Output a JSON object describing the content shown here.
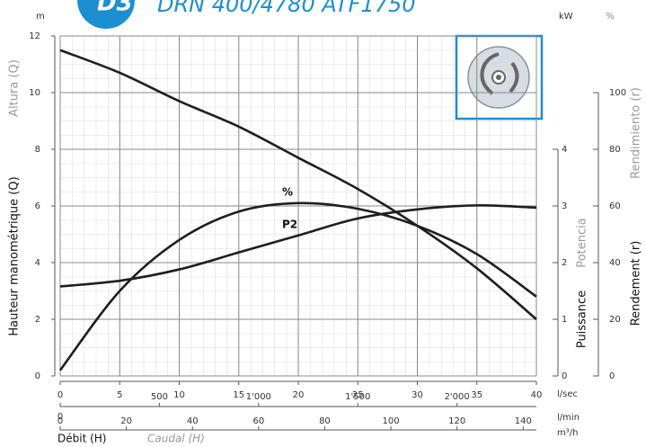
{
  "badge": "D3",
  "chart_data": {
    "type": "line",
    "title": "DRN 400/4780 ATF1750",
    "x": [
      0,
      5,
      10,
      15,
      20,
      25,
      30,
      35,
      40
    ],
    "xlim": [
      0,
      40
    ],
    "xticks": [
      0,
      5,
      10,
      15,
      20,
      25,
      30,
      35,
      40
    ],
    "xunit": "l/sec",
    "x2lim": [
      0,
      2400
    ],
    "x2ticks": [
      0,
      500,
      {
        "value": 1000,
        "label": "1'000"
      },
      {
        "value": 1500,
        "label": "1'500"
      },
      {
        "value": 2000,
        "label": "2'000"
      }
    ],
    "x2unit": "l/min",
    "x3lim": [
      0,
      144
    ],
    "x3ticks": [
      0,
      20,
      40,
      60,
      80,
      100,
      120,
      140
    ],
    "x3unit": "m³/h",
    "xlabel": "Débit (H)",
    "xlabel_alt": "Caudal (H)",
    "ylim": [
      0,
      12
    ],
    "yticks": [
      0,
      2,
      4,
      6,
      8,
      10,
      12
    ],
    "yunit": "m",
    "ylabel": "Hauteur manométrique (Q)",
    "ylabel_alt": "Altura (Q)",
    "y2lim": [
      0,
      6
    ],
    "y2ticks": [
      0,
      1,
      2,
      3,
      4
    ],
    "y2unit": "kW",
    "y2label": "Puissance",
    "y2label_alt": "Potencia",
    "y3lim": [
      0,
      120
    ],
    "y3ticks": [
      0,
      20,
      40,
      60,
      80,
      100
    ],
    "y3unit": "%",
    "y3label": "Rendement (r)",
    "y3label_alt": "Rendimiento (r)",
    "grid": true,
    "series": [
      {
        "color": "#1e1e1e",
        "values": [
          11.5,
          10.7,
          9.7,
          8.8,
          7.7,
          6.6,
          5.3,
          3.8,
          2.0
        ]
      },
      {
        "label": "%",
        "axis": "y3",
        "color": "#1e1e1e",
        "values": [
          2,
          30,
          48,
          58,
          61,
          59,
          53,
          43,
          28
        ]
      },
      {
        "label": "P2",
        "axis": "y2",
        "color": "#1e1e1e",
        "values": [
          1.58,
          1.68,
          1.88,
          2.18,
          2.48,
          2.78,
          2.94,
          3.01,
          2.97
        ]
      }
    ]
  }
}
